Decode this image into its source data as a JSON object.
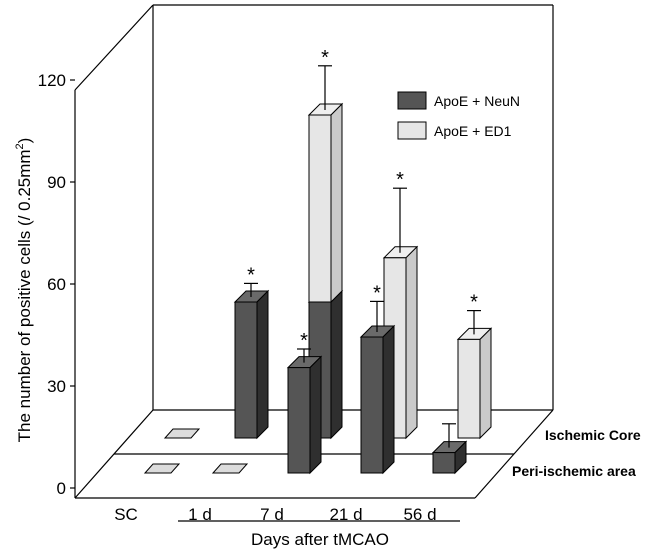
{
  "chart_data": {
    "type": "bar",
    "style": "3d-stacked",
    "title": "",
    "ylabel": "The number of positive cells (/ 0.25mm",
    "ylabel_sup": "2",
    "ylabel_tail": ")",
    "xlabel": "Days after tMCAO",
    "ylim": [
      0,
      120
    ],
    "yticks": [
      0,
      30,
      60,
      90,
      120
    ],
    "categories": [
      "SC",
      "1 d",
      "7 d",
      "21 d",
      "56 d"
    ],
    "depth_rows": [
      "Ischemic Core",
      "Peri-ischemic area"
    ],
    "series": [
      {
        "name": "ApoE + NeuN",
        "color": "#555555"
      },
      {
        "name": "ApoE + ED1",
        "color": "#e6e6e6"
      }
    ],
    "bars": [
      {
        "row": "Peri-ischemic area",
        "category": "SC",
        "neun": 0,
        "ed1": 0,
        "err": 0,
        "sig": ""
      },
      {
        "row": "Peri-ischemic area",
        "category": "1 d",
        "neun": 0,
        "ed1": 0,
        "err": 0,
        "sig": ""
      },
      {
        "row": "Peri-ischemic area",
        "category": "7 d",
        "neun": 31,
        "ed1": 0,
        "err": 4,
        "sig": "*"
      },
      {
        "row": "Peri-ischemic area",
        "category": "21 d",
        "neun": 40,
        "ed1": 0,
        "err": 9,
        "sig": "*"
      },
      {
        "row": "Peri-ischemic area",
        "category": "56 d",
        "neun": 6,
        "ed1": 0,
        "err": 7,
        "sig": ""
      },
      {
        "row": "Ischemic Core",
        "category": "SC",
        "neun": 0,
        "ed1": 0,
        "err": 0,
        "sig": ""
      },
      {
        "row": "Ischemic Core",
        "category": "1 d",
        "neun": 40,
        "ed1": 0,
        "err": 4,
        "sig": "*"
      },
      {
        "row": "Ischemic Core",
        "category": "7 d",
        "neun": 40,
        "ed1": 55,
        "err": 13,
        "sig": "*"
      },
      {
        "row": "Ischemic Core",
        "category": "21 d",
        "neun": 0,
        "ed1": 53,
        "err": 19,
        "sig": "*"
      },
      {
        "row": "Ischemic Core",
        "category": "56 d",
        "neun": 0,
        "ed1": 29,
        "err": 7,
        "sig": "*"
      }
    ],
    "grid": false,
    "legend_position": "top-right"
  }
}
